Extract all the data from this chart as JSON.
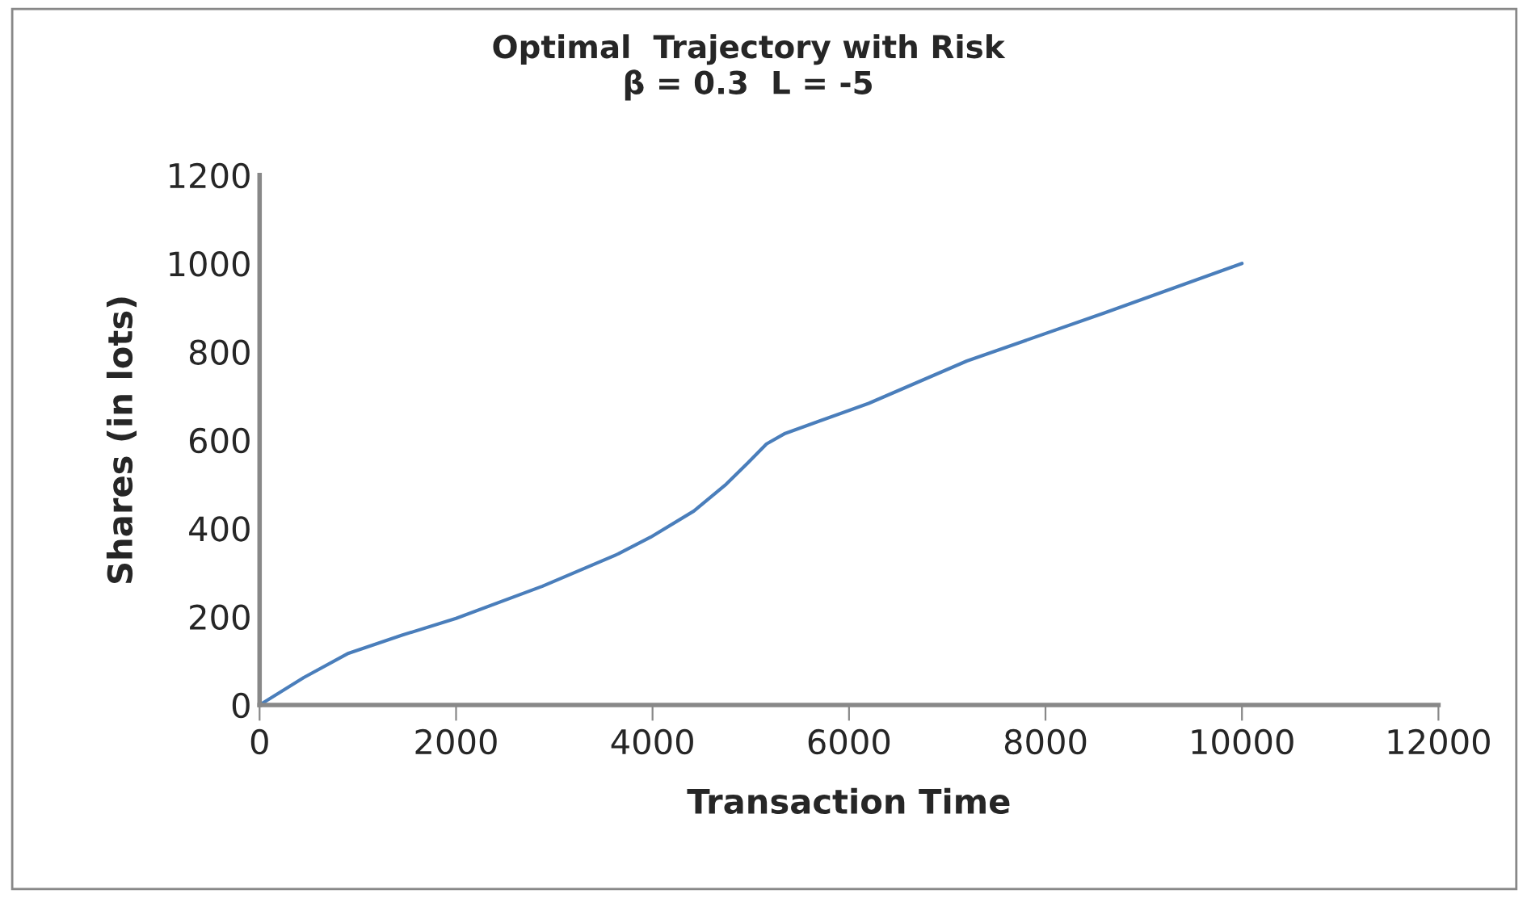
{
  "chart_data": {
    "type": "line",
    "title": "Optimal  Trajectory with Risk\nβ = 0.3  L = -5",
    "xlabel": "Transaction Time",
    "ylabel": "Shares (in lots)",
    "x": [
      0,
      450,
      905,
      1450,
      2000,
      2880,
      3650,
      3980,
      4420,
      4750,
      4970,
      5160,
      5350,
      6200,
      7200,
      8600,
      10000
    ],
    "series": [
      {
        "color": "#4a7ebb",
        "values": [
          0,
          62,
          117,
          158,
          196,
          269,
          342,
          380,
          439,
          500,
          548,
          591,
          615,
          683,
          779,
          888,
          1000
        ]
      }
    ],
    "xlim": [
      0,
      12000
    ],
    "xticks": [
      0,
      2000,
      4000,
      6000,
      8000,
      10000,
      12000
    ],
    "ylim": [
      0,
      1200
    ],
    "yticks": [
      0,
      200,
      400,
      600,
      800,
      1000,
      1200
    ],
    "grid": false,
    "marker": "none",
    "line_style": "solid"
  }
}
